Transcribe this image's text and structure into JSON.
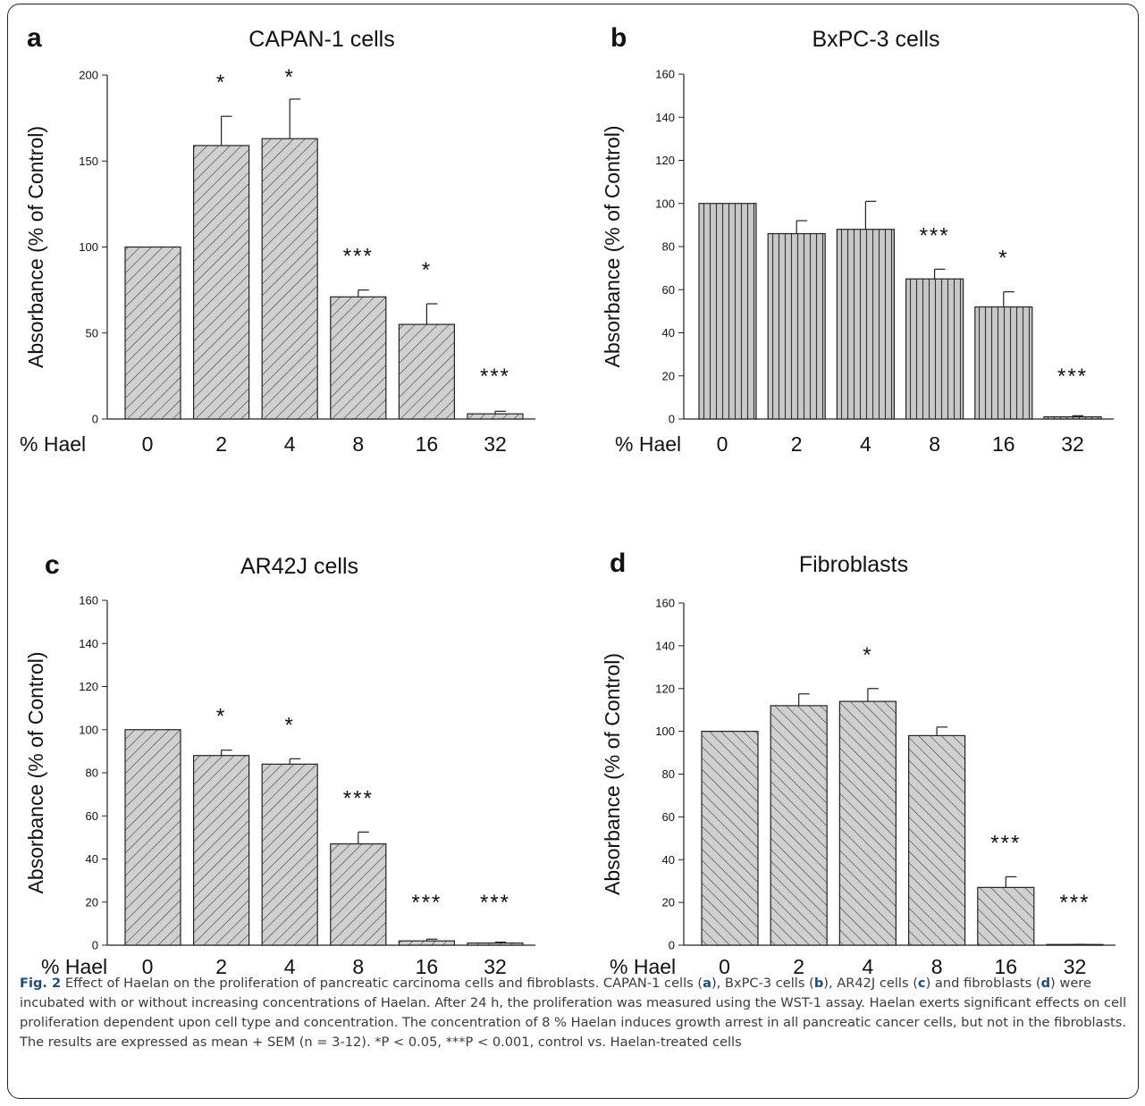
{
  "chart_data": [
    {
      "panel": "a",
      "title": "CAPAN-1 cells",
      "type": "bar",
      "xlabel": "% Hael",
      "ylabel": "Absorbance (% of Control)",
      "categories": [
        "0",
        "2",
        "4",
        "8",
        "16",
        "32"
      ],
      "values": [
        100,
        159,
        163,
        71,
        55,
        3
      ],
      "errors": [
        0,
        17,
        23,
        4,
        12,
        1.5
      ],
      "significance": [
        "",
        "*",
        "*",
        "***",
        "*",
        "***"
      ],
      "ylim": [
        0,
        200
      ],
      "yticks": [
        0,
        50,
        100,
        150,
        200
      ],
      "pattern": "hatch-forward"
    },
    {
      "panel": "b",
      "title": "BxPC-3 cells",
      "type": "bar",
      "xlabel": "% Hael",
      "ylabel": "Absorbance (% of Control)",
      "categories": [
        "0",
        "2",
        "4",
        "8",
        "16",
        "32"
      ],
      "values": [
        100,
        86,
        88,
        65,
        52,
        1
      ],
      "errors": [
        0,
        6,
        13,
        4.5,
        7,
        0.5
      ],
      "significance": [
        "",
        "",
        "",
        "***",
        "*",
        "***"
      ],
      "ylim": [
        0,
        160
      ],
      "yticks": [
        0,
        20,
        40,
        60,
        80,
        100,
        120,
        140,
        160
      ],
      "pattern": "hatch-vertical"
    },
    {
      "panel": "c",
      "title": "AR42J cells",
      "type": "bar",
      "xlabel": "% Hael",
      "ylabel": "Absorbance (% of Control)",
      "categories": [
        "0",
        "2",
        "4",
        "8",
        "16",
        "32"
      ],
      "values": [
        100,
        88,
        84,
        47,
        2,
        1
      ],
      "errors": [
        0,
        2.5,
        2.5,
        5.5,
        0.8,
        0.4
      ],
      "significance": [
        "",
        "*",
        "*",
        "***",
        "***",
        "***"
      ],
      "ylim": [
        0,
        160
      ],
      "yticks": [
        0,
        20,
        40,
        60,
        80,
        100,
        120,
        140,
        160
      ],
      "pattern": "hatch-forward"
    },
    {
      "panel": "d",
      "title": "Fibroblasts",
      "type": "bar",
      "xlabel": "% Hael",
      "ylabel": "Absorbance (% of Control)",
      "categories": [
        "0",
        "2",
        "4",
        "8",
        "16",
        "32"
      ],
      "values": [
        100,
        112,
        114,
        98,
        27,
        0.3
      ],
      "errors": [
        0,
        5.5,
        6,
        4,
        5,
        0.1
      ],
      "significance": [
        "",
        "",
        "*",
        "",
        "***",
        "***"
      ],
      "ylim": [
        0,
        160
      ],
      "yticks": [
        0,
        20,
        40,
        60,
        80,
        100,
        120,
        140,
        160
      ],
      "pattern": "hatch-back"
    }
  ],
  "caption": {
    "figure_label": "Fig. 2",
    "text_1": " Effect of Haelan on the proliferation of pancreatic carcinoma cells and fibroblasts. CAPAN-1 cells (",
    "ref_a": "a",
    "text_2": "), BxPC-3 cells (",
    "ref_b": "b",
    "text_3": "), AR42J cells (",
    "ref_c": "c",
    "text_4": ") and fibroblasts (",
    "ref_d": "d",
    "text_5": ") were incubated with or without increasing concentrations of Haelan. After 24 h, the proliferation was measured using the WST-1 assay. Haelan exerts significant effects on cell proliferation dependent upon cell type and concentration. The concentration of 8 % Haelan induces growth arrest in all pancreatic cancer cells, but not in the fibroblasts. The results are expressed as mean + SEM (n = 3-12). *P < 0.05, ***P < 0.001, control vs. Haelan-treated cells"
  },
  "colors": {
    "bar_fill": "#d0d0d0",
    "bar_stroke": "#222222",
    "caption_accent": "#1a4f7a"
  }
}
